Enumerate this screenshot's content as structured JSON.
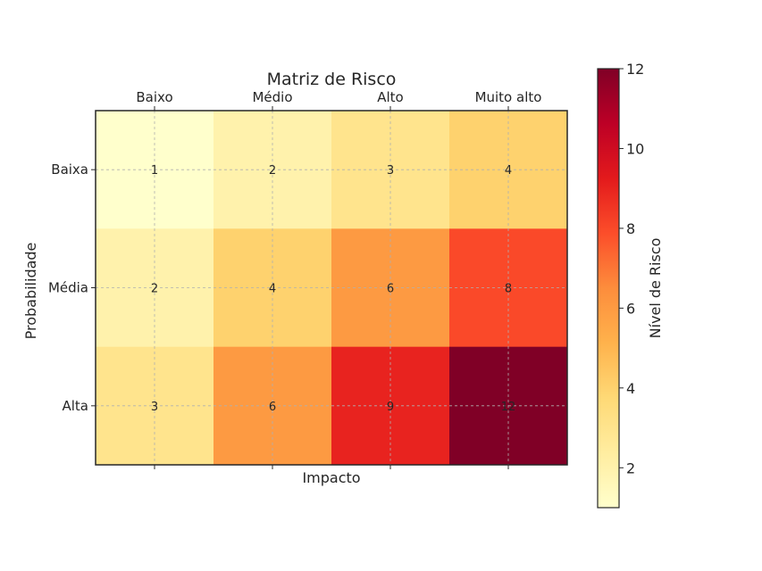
{
  "chart_data": {
    "type": "heatmap",
    "title": "Matriz de Risco",
    "xlabel": "Impacto",
    "ylabel": "Probabilidade",
    "x_categories": [
      "Baixo",
      "Médio",
      "Alto",
      "Muito alto"
    ],
    "y_categories": [
      "Baixa",
      "Média",
      "Alta"
    ],
    "values": [
      [
        1,
        2,
        3,
        4
      ],
      [
        2,
        4,
        6,
        8
      ],
      [
        3,
        6,
        9,
        12
      ]
    ],
    "x_axis_position": "top",
    "grid": true,
    "colormap": "YlOrRd",
    "colorbar": {
      "label": "Nível de Risco",
      "range": [
        1,
        12
      ],
      "ticks": [
        2,
        4,
        6,
        8,
        10,
        12
      ]
    }
  }
}
